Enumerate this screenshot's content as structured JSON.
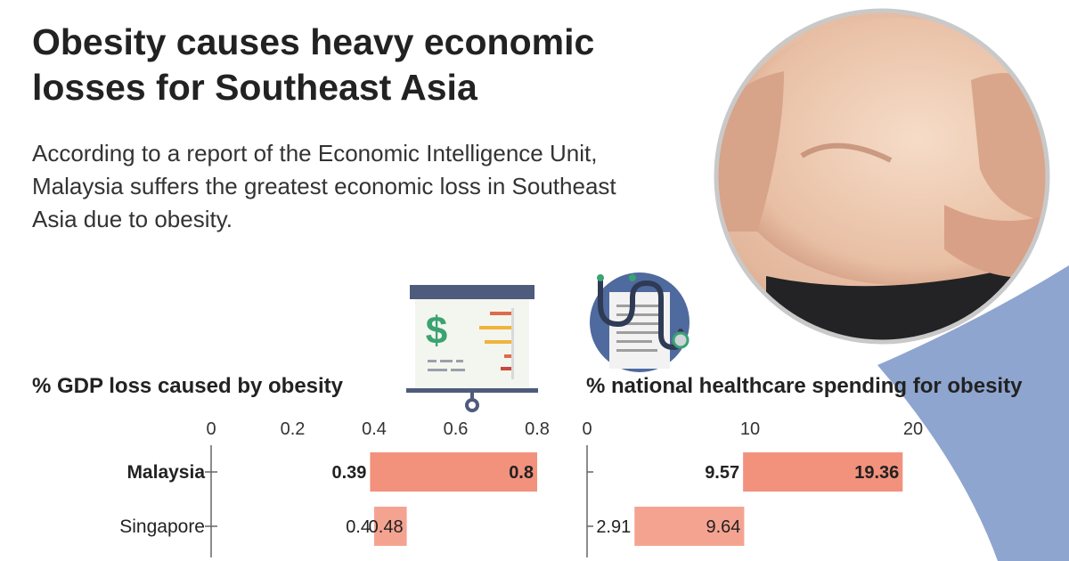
{
  "headline": {
    "line1": "Obesity causes heavy economic",
    "line2": "losses for Southeast Asia"
  },
  "intro": {
    "line1": "According to a report of the Economic Intelligence Unit,",
    "line2": "Malaysia suffers the greatest economic loss in Southeast",
    "line3": "Asia due to obesity."
  },
  "icons": {
    "presentation": "presentation-board-dollar-icon",
    "medical": "stethoscope-document-icon",
    "photo": "belly-photo"
  },
  "colors": {
    "bar_first": "#f2917c",
    "bar_second": "#f5a391",
    "accent_blue": "#8ea5cf",
    "axis": "#666666"
  },
  "chart_data": [
    {
      "type": "bar",
      "orientation": "horizontal",
      "title": "% GDP loss caused by obesity",
      "categories": [
        "Malaysia",
        "Singapore"
      ],
      "ranges": [
        [
          0.39,
          0.8
        ],
        [
          0.4,
          0.48
        ]
      ],
      "highlight": "Malaysia",
      "xlim": [
        0,
        0.8
      ],
      "xticks": [
        "0",
        "0.2",
        "0.4",
        "0.6",
        "0.8"
      ],
      "xtick_values": [
        0,
        0.2,
        0.4,
        0.6,
        0.8
      ],
      "start_labels": [
        "0.39",
        "0.4"
      ],
      "end_labels": [
        "0.8",
        "0.48"
      ],
      "grid": false
    },
    {
      "type": "bar",
      "orientation": "horizontal",
      "title": "% national healthcare spending for obesity",
      "categories": [
        "Malaysia",
        "Singapore"
      ],
      "ranges": [
        [
          9.57,
          19.36
        ],
        [
          2.91,
          9.64
        ]
      ],
      "highlight": "Malaysia",
      "xlim": [
        0,
        20
      ],
      "xticks": [
        "0",
        "10",
        "20"
      ],
      "xtick_values": [
        0,
        10,
        20
      ],
      "start_labels": [
        "9.57",
        "2.91"
      ],
      "end_labels": [
        "19.36",
        "9.64"
      ],
      "grid": false
    }
  ]
}
